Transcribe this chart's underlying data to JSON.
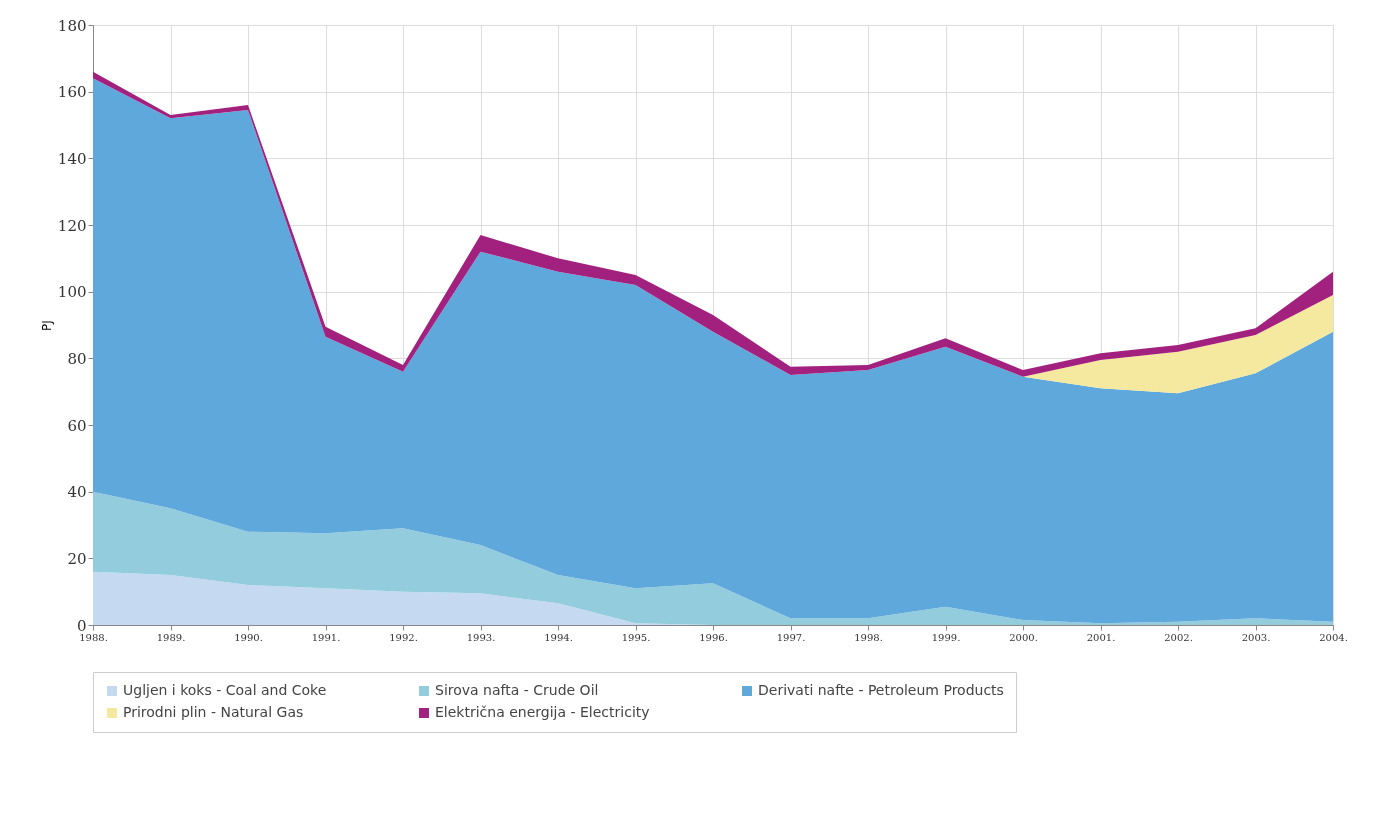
{
  "chart_data": {
    "type": "area",
    "ylabel": "PJ",
    "categories": [
      "1988.",
      "1989.",
      "1990.",
      "1991.",
      "1992.",
      "1993.",
      "1994.",
      "1995.",
      "1996.",
      "1997.",
      "1998.",
      "1999.",
      "2000.",
      "2001.",
      "2002.",
      "2003.",
      "2004."
    ],
    "stacked": true,
    "ylim": [
      0,
      180
    ],
    "yticks": [
      0,
      20,
      40,
      60,
      80,
      100,
      120,
      140,
      160,
      180
    ],
    "grid": true,
    "legend": "bottom",
    "series": [
      {
        "name": "Ugljen i koks - Coal and Coke",
        "color": "#c5d9f1",
        "values": [
          16,
          15,
          12,
          11,
          10,
          9.5,
          6.5,
          0.5,
          0,
          0,
          0,
          0,
          0,
          0,
          0,
          0,
          0
        ]
      },
      {
        "name": "Sirova nafta - Crude Oil",
        "color": "#93cddd",
        "values": [
          24,
          20,
          16,
          16.5,
          19,
          14.5,
          8.5,
          10.5,
          12.5,
          2,
          2,
          5.5,
          1.5,
          0.5,
          1,
          2,
          1
        ]
      },
      {
        "name": "Derivati nafte - Petroleum Products",
        "color": "#5fa8dc",
        "values": [
          124,
          117,
          126.5,
          59,
          47,
          88,
          91,
          91,
          75.5,
          73,
          74.5,
          78,
          73,
          70.5,
          68.5,
          73.5,
          87
        ]
      },
      {
        "name": "Prirodni plin - Natural Gas",
        "color": "#f5e9a0",
        "values": [
          0,
          0,
          0,
          0,
          0,
          0,
          0,
          0,
          0,
          0,
          0,
          0,
          0,
          8.5,
          12.5,
          11.5,
          11
        ]
      },
      {
        "name": "Električna energija - Electricity",
        "color": "#a3217e",
        "values": [
          2,
          1,
          1.5,
          3,
          2,
          5,
          4,
          3,
          5,
          2.5,
          1.5,
          2.5,
          2,
          2,
          2,
          2,
          7
        ]
      }
    ]
  }
}
